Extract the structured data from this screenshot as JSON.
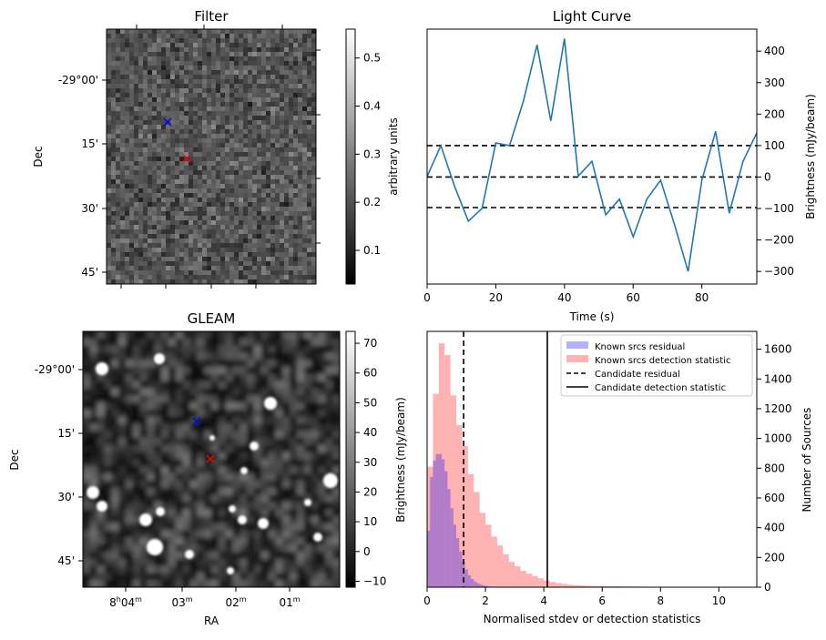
{
  "chart_data": [
    {
      "type": "heatmap",
      "title": "Filter",
      "xlabel": "",
      "ylabel": "Dec",
      "ytick_labels": [
        "-29°00'",
        "15'",
        "30'",
        "45'"
      ],
      "colorbar": {
        "label": "arbitrary units",
        "range": [
          0.03,
          0.56
        ],
        "ticks": [
          0.1,
          0.2,
          0.3,
          0.4,
          0.5
        ],
        "tick_labels": [
          "0.1",
          "0.2",
          "0.3",
          "0.4",
          "0.5"
        ]
      },
      "markers": [
        {
          "symbol": "x",
          "color": "#0000ff"
        },
        {
          "symbol": "x",
          "color": "#ff0000"
        }
      ]
    },
    {
      "type": "line",
      "title": "Light Curve",
      "xlabel": "Time (s)",
      "ylabel": "Brightness (mJy/beam)",
      "xlim": [
        0,
        96
      ],
      "ylim": [
        -340,
        470
      ],
      "xticks": [
        0,
        20,
        40,
        60,
        80
      ],
      "yticks": [
        -300,
        -200,
        -100,
        0,
        100,
        200,
        300,
        400
      ],
      "series": [
        {
          "name": "light curve",
          "color": "#1f77b4",
          "x": [
            0,
            4,
            8,
            12,
            16,
            20,
            24,
            28,
            32,
            36,
            40,
            44,
            48,
            52,
            56,
            60,
            64,
            68,
            72,
            76,
            80,
            84,
            88,
            92,
            96
          ],
          "y": [
            2,
            100,
            -30,
            -140,
            -100,
            108,
            100,
            240,
            420,
            178,
            440,
            3,
            50,
            -120,
            -70,
            -190,
            -70,
            -10,
            -150,
            -300,
            -10,
            145,
            -115,
            50,
            140
          ]
        }
      ],
      "hlines": [
        {
          "y": 100,
          "style": "dashed",
          "color": "#000000"
        },
        {
          "y": 0,
          "style": "dashed",
          "color": "#000000"
        },
        {
          "y": -97,
          "style": "dashed",
          "color": "#000000"
        }
      ]
    },
    {
      "type": "heatmap",
      "title": "GLEAM",
      "xlabel": "RA",
      "ylabel": "Dec",
      "xtick_labels": [
        "8h04m",
        "03m",
        "02m",
        "01m"
      ],
      "ytick_labels": [
        "-29°00'",
        "15'",
        "30'",
        "45'"
      ],
      "colorbar": {
        "label": "Brightness (mJy/beam)",
        "range": [
          -12,
          74
        ],
        "ticks": [
          -10,
          0,
          10,
          20,
          30,
          40,
          50,
          60,
          70
        ],
        "tick_labels": [
          "−10",
          "0",
          "10",
          "20",
          "30",
          "40",
          "50",
          "60",
          "70"
        ]
      },
      "markers": [
        {
          "symbol": "x",
          "color": "#0000ff"
        },
        {
          "symbol": "x",
          "color": "#ff0000"
        }
      ]
    },
    {
      "type": "bar",
      "title": "",
      "xlabel": "Normalised stdev or detection statistics",
      "ylabel": "Number of Sources",
      "xlim": [
        0,
        11.3
      ],
      "ylim": [
        0,
        1720
      ],
      "xticks": [
        0,
        2,
        4,
        6,
        8,
        10
      ],
      "yticks": [
        0,
        200,
        400,
        600,
        800,
        1000,
        1200,
        1400,
        1600
      ],
      "series": [
        {
          "name": "Known srcs residual",
          "color": "#0000ff",
          "opacity": 0.3,
          "bin_width": 0.1,
          "bin_start": 0,
          "values": [
            380,
            740,
            850,
            895,
            895,
            860,
            780,
            660,
            530,
            420,
            330,
            240,
            170,
            120,
            80,
            55,
            38,
            26,
            18,
            12,
            8,
            5,
            3,
            2
          ]
        },
        {
          "name": "Known srcs detection statistic",
          "color": "#ff0000",
          "opacity": 0.3,
          "bin_width": 0.2,
          "bin_start": 0,
          "values": [
            810,
            1300,
            1640,
            1560,
            1290,
            1090,
            950,
            760,
            640,
            500,
            420,
            340,
            280,
            220,
            170,
            140,
            110,
            90,
            75,
            60,
            45,
            35,
            28,
            22,
            17,
            14,
            12,
            10,
            9,
            8,
            7,
            6,
            6,
            5,
            5,
            4,
            4,
            3,
            3,
            3
          ]
        }
      ],
      "vlines": [
        {
          "name": "Candidate residual",
          "x": 1.25,
          "style": "dashed",
          "color": "#000000"
        },
        {
          "name": "Candidate detection statistic",
          "x": 4.12,
          "style": "solid",
          "color": "#000000"
        }
      ],
      "legend_position": "top-right",
      "legend": [
        {
          "label": "Known srcs residual",
          "kind": "patch",
          "color": "#0000ff"
        },
        {
          "label": "Known srcs detection statistic",
          "kind": "patch",
          "color": "#ff0000"
        },
        {
          "label": "Candidate residual",
          "kind": "dashed",
          "color": "#000000"
        },
        {
          "label": "Candidate detection statistic",
          "kind": "solid",
          "color": "#000000"
        }
      ]
    }
  ]
}
